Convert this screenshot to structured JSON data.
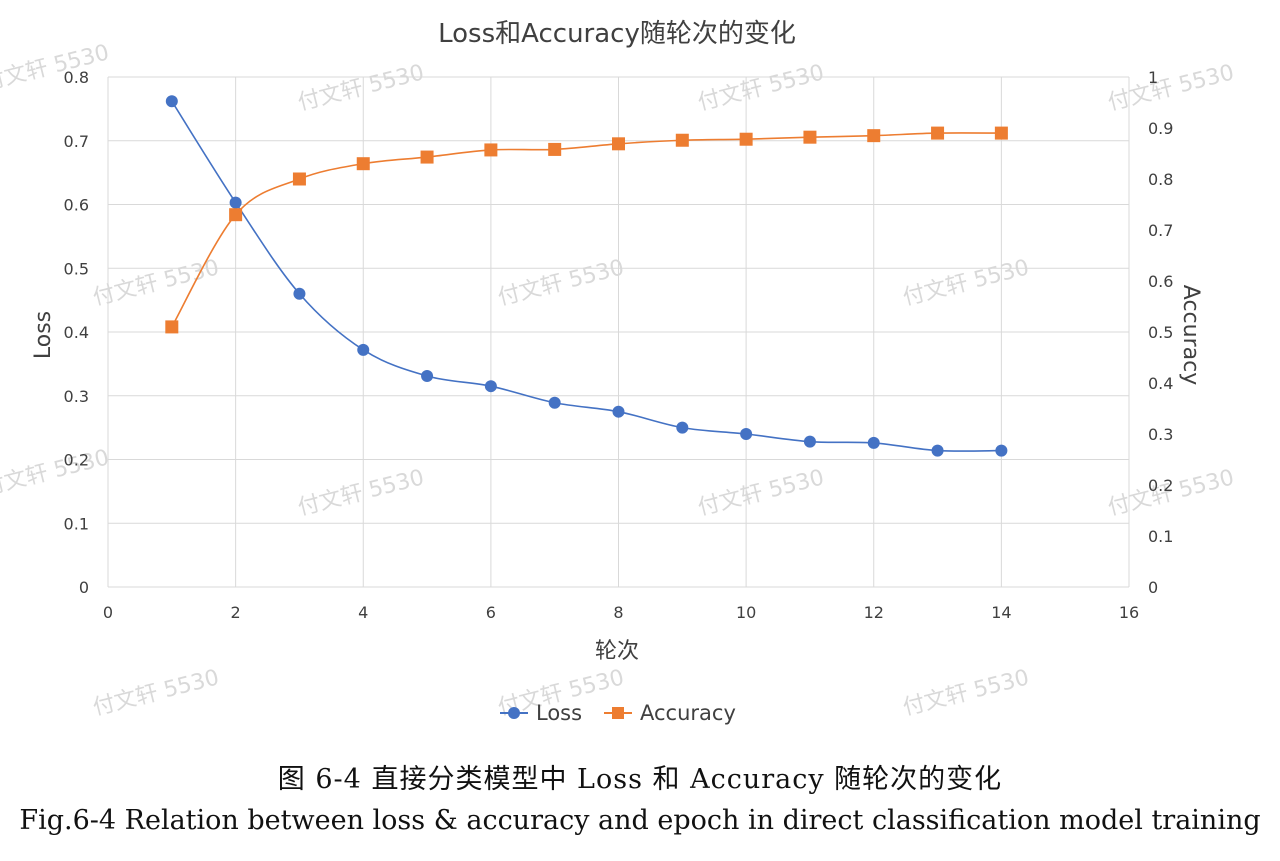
{
  "chart_data": {
    "type": "line",
    "title": "Loss和Accuracy随轮次的变化",
    "xlabel": "轮次",
    "ylabel_left": "Loss",
    "ylabel_right": "Accuracy",
    "xlim": [
      0,
      16
    ],
    "xticks": [
      0,
      2,
      4,
      6,
      8,
      10,
      12,
      14,
      16
    ],
    "ylim_left": [
      0,
      0.8
    ],
    "yticks_left": [
      0,
      0.1,
      0.2,
      0.3,
      0.4,
      0.5,
      0.6,
      0.7,
      0.8
    ],
    "ylim_right": [
      0,
      1
    ],
    "yticks_right": [
      0,
      0.1,
      0.2,
      0.3,
      0.4,
      0.5,
      0.6,
      0.7,
      0.8,
      0.9,
      1
    ],
    "grid": true,
    "legend_position": "bottom",
    "series": [
      {
        "name": "Loss",
        "axis": "left",
        "marker": "circle",
        "color": "#4472c4",
        "x": [
          1,
          2,
          3,
          4,
          5,
          6,
          7,
          8,
          9,
          10,
          11,
          12,
          13,
          14
        ],
        "y": [
          0.762,
          0.603,
          0.46,
          0.372,
          0.331,
          0.315,
          0.289,
          0.275,
          0.25,
          0.24,
          0.228,
          0.226,
          0.214,
          0.214
        ]
      },
      {
        "name": "Accuracy",
        "axis": "right",
        "marker": "square",
        "color": "#ed7d31",
        "x": [
          1,
          2,
          3,
          4,
          5,
          6,
          7,
          8,
          9,
          10,
          11,
          12,
          13,
          14
        ],
        "y": [
          0.51,
          0.73,
          0.8,
          0.83,
          0.843,
          0.857,
          0.858,
          0.869,
          0.876,
          0.878,
          0.882,
          0.885,
          0.89,
          0.89
        ]
      }
    ]
  },
  "watermark": {
    "text": "付文轩 5530",
    "color": "#d9d9d9"
  },
  "caption": {
    "cn": "图 6-4 直接分类模型中 Loss 和 Accuracy 随轮次的变化",
    "en": "Fig.6-4 Relation between loss & accuracy and epoch in direct classification model training"
  }
}
